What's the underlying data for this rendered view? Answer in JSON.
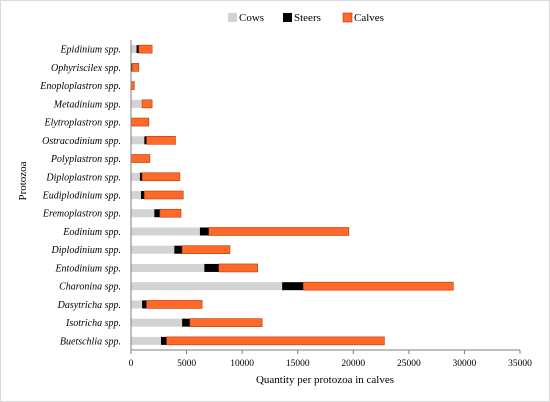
{
  "chart_data": {
    "type": "bar",
    "orientation": "horizontal",
    "stacked": true,
    "xlabel": "Quantity per protozoa in calves",
    "ylabel": "Protozoa",
    "xlim": [
      0,
      35000
    ],
    "xticks": [
      0,
      5000,
      10000,
      15000,
      20000,
      25000,
      30000,
      35000
    ],
    "legend_position": "top-right",
    "categories": [
      "Epidinium spp.",
      "Ophyriscilex spp.",
      "Enoploplastron spp.",
      "Metadinium spp.",
      "Elytroplastron spp.",
      "Ostracodinium spp.",
      "Polyplastron spp.",
      "Diploplastron spp.",
      "Eudiplodinium spp.",
      "Eremoplastron spp.",
      "Eodinium spp.",
      "Diplodinium spp.",
      "Entodinium spp.",
      "Charonina spp.",
      "Dasytricha spp.",
      "Isotricha spp.",
      "Buetschlia spp."
    ],
    "series": [
      {
        "name": "Cows",
        "color": "#d3d3d3",
        "values": [
          500,
          0,
          0,
          1000,
          0,
          1200,
          0,
          800,
          900,
          2100,
          6200,
          3900,
          6600,
          13600,
          1000,
          4600,
          2700
        ]
      },
      {
        "name": "Steers",
        "color": "#000000",
        "values": [
          200,
          100,
          0,
          0,
          0,
          200,
          0,
          200,
          300,
          500,
          800,
          700,
          1300,
          1900,
          400,
          700,
          500
        ]
      },
      {
        "name": "Calves",
        "color": "#ff6a2a",
        "values": [
          1200,
          600,
          300,
          900,
          1600,
          2600,
          1700,
          3400,
          3500,
          1900,
          12600,
          4300,
          3500,
          13500,
          5000,
          6500,
          19600
        ]
      }
    ]
  }
}
